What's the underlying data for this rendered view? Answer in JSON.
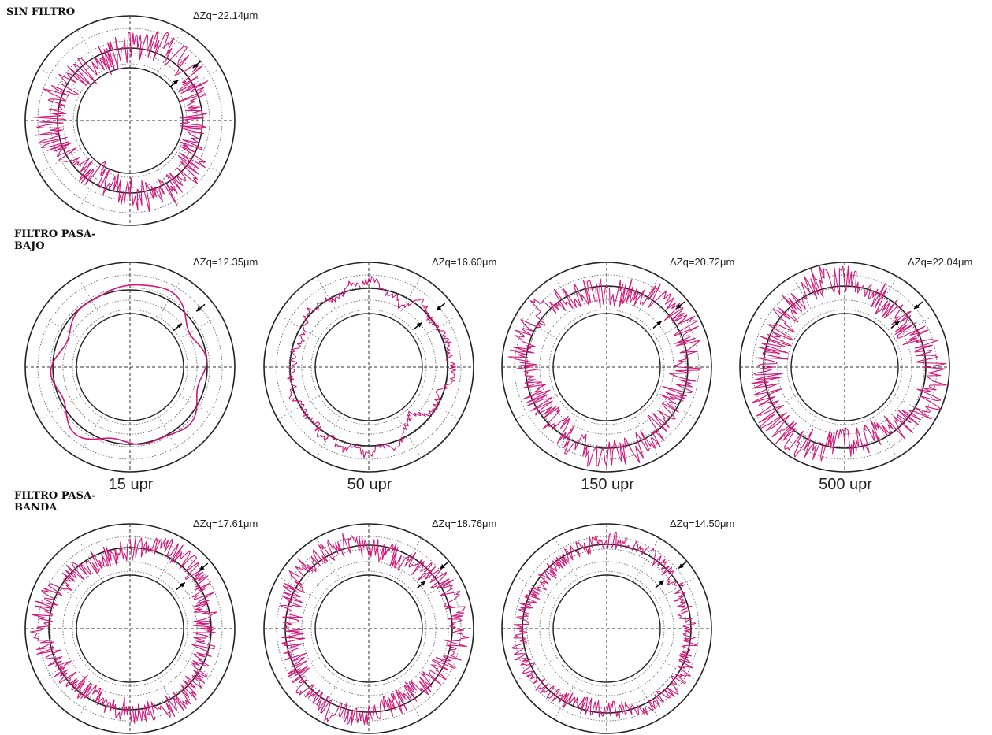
{
  "row_labels": {
    "sin_filtro": "SIN FILTRO",
    "pasa_bajo": "FILTRO PASA-\nBAJO",
    "pasa_banda": "FILTRO PASA-\nBANDA"
  },
  "frequency_labels": [
    "15 upr",
    "50 upr",
    "150 upr",
    "500 upr"
  ],
  "colors": {
    "profile": "#d4157a",
    "rings": "#222222",
    "grid": "#555555"
  },
  "chart_data": [
    {
      "type": "polar-roundness",
      "group": "SIN FILTRO",
      "delta_label": "ΔZq=22.14μm",
      "delta_zq": 22.14,
      "unit": "μm",
      "noise_level": 1.0,
      "smoothness": "unfiltered"
    },
    {
      "type": "polar-roundness",
      "group": "FILTRO PASA-BAJO",
      "frequency": "15 upr",
      "delta_label": "ΔZq=12.35μm",
      "delta_zq": 12.35,
      "unit": "μm",
      "cutoff_upr": 15
    },
    {
      "type": "polar-roundness",
      "group": "FILTRO PASA-BAJO",
      "frequency": "50 upr",
      "delta_label": "ΔZq=16.60μm",
      "delta_zq": 16.6,
      "unit": "μm",
      "cutoff_upr": 50
    },
    {
      "type": "polar-roundness",
      "group": "FILTRO PASA-BAJO",
      "frequency": "150 upr",
      "delta_label": "ΔZq=20.72μm",
      "delta_zq": 20.72,
      "unit": "μm",
      "cutoff_upr": 150
    },
    {
      "type": "polar-roundness",
      "group": "FILTRO PASA-BAJO",
      "frequency": "500 upr",
      "delta_label": "ΔZq=22.04μm",
      "delta_zq": 22.04,
      "unit": "μm",
      "cutoff_upr": 500
    },
    {
      "type": "polar-roundness",
      "group": "FILTRO PASA-BANDA",
      "delta_label": "ΔZq=17.61μm",
      "delta_zq": 17.61,
      "unit": "μm"
    },
    {
      "type": "polar-roundness",
      "group": "FILTRO PASA-BANDA",
      "delta_label": "ΔZq=18.76μm",
      "delta_zq": 18.76,
      "unit": "μm"
    },
    {
      "type": "polar-roundness",
      "group": "FILTRO PASA-BANDA",
      "delta_label": "ΔZq=14.50μm",
      "delta_zq": 14.5,
      "unit": "μm"
    }
  ]
}
